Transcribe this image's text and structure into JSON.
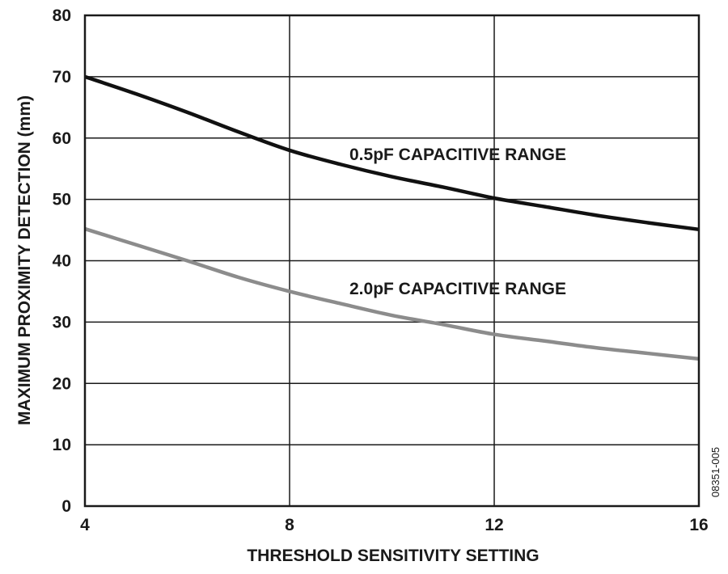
{
  "chart_data": {
    "type": "line",
    "title": "",
    "xlabel": "THRESHOLD SENSITIVITY SETTING",
    "ylabel": "MAXIMUM PROXIMITY DETECTION (mm)",
    "xlim": [
      4,
      16
    ],
    "ylim": [
      0,
      80
    ],
    "x_ticks": [
      "4",
      "8",
      "12",
      "16"
    ],
    "y_ticks": [
      "0",
      "10",
      "20",
      "30",
      "40",
      "50",
      "60",
      "70",
      "80"
    ],
    "grid": true,
    "figure_id": "08351-005",
    "series": [
      {
        "name": "0.5pF CAPACITIVE RANGE",
        "color": "#111111",
        "x": [
          4,
          5,
          6,
          7,
          8,
          9,
          10,
          11,
          12,
          13,
          14,
          15,
          16
        ],
        "y": [
          70,
          67.2,
          64.2,
          61,
          58,
          55.7,
          53.7,
          52,
          50.2,
          48.8,
          47.4,
          46.2,
          45.1
        ]
      },
      {
        "name": "2.0pF CAPACITIVE RANGE",
        "color": "#8c8c8c",
        "x": [
          4,
          5,
          6,
          7,
          8,
          9,
          10,
          11,
          12,
          13,
          14,
          15,
          16
        ],
        "y": [
          45.2,
          42.6,
          40,
          37.3,
          35,
          33,
          31.1,
          29.6,
          28,
          26.9,
          25.8,
          24.9,
          24
        ]
      }
    ]
  }
}
